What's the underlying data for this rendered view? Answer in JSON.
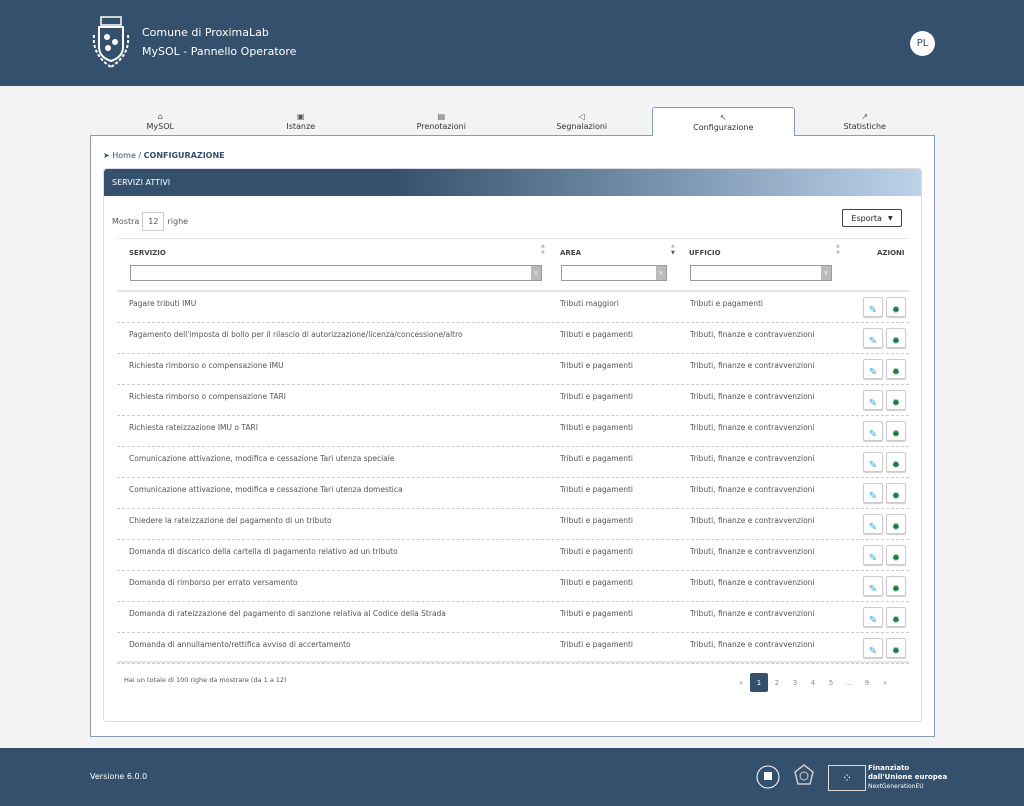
{
  "header": {
    "org": "Comune di ProximaLab",
    "app": "MySOL - Pannello Operatore",
    "avatar": "PL"
  },
  "tabs": [
    {
      "label": "MySOL",
      "icon": "bank-icon"
    },
    {
      "label": "Istanze",
      "icon": "document-icon"
    },
    {
      "label": "Prenotazioni",
      "icon": "calendar-icon"
    },
    {
      "label": "Segnalazioni",
      "icon": "megaphone-icon"
    },
    {
      "label": "Configurazione",
      "icon": "wrench-icon",
      "active": true
    },
    {
      "label": "Statistiche",
      "icon": "chart-icon"
    }
  ],
  "breadcrumb": {
    "home": "Home",
    "sep": "/",
    "current": "CONFIGURAZIONE"
  },
  "card": {
    "title": "SERVIZI ATTIVI",
    "show_prefix": "Mostra",
    "show_value": "12",
    "show_suffix": "righe",
    "export": "Esporta"
  },
  "columns": {
    "servizio": "SERVIZIO",
    "area": "AREA",
    "ufficio": "UFFICIO",
    "azioni": "AZIONI"
  },
  "filters": {
    "x": "x"
  },
  "rows": [
    {
      "servizio": "Pagare tributi IMU",
      "area": "Tributi maggiori",
      "ufficio": "Tributi e pagamenti"
    },
    {
      "servizio": "Pagamento dell'imposta di bollo per il rilascio di autorizzazione/licenza/concessione/altro",
      "area": "Tributi e pagamenti",
      "ufficio": "Tributi, finanze e contravvenzioni"
    },
    {
      "servizio": "Richiesta rimborso o compensazione IMU",
      "area": "Tributi e pagamenti",
      "ufficio": "Tributi, finanze e contravvenzioni"
    },
    {
      "servizio": "Richiesta rimborso o compensazione TARI",
      "area": "Tributi e pagamenti",
      "ufficio": "Tributi, finanze e contravvenzioni"
    },
    {
      "servizio": "Richiesta rateizzazione IMU o TARI",
      "area": "Tributi e pagamenti",
      "ufficio": "Tributi, finanze e contravvenzioni"
    },
    {
      "servizio": "Comunicazione attivazione, modifica e cessazione Tari utenza speciale",
      "area": "Tributi e pagamenti",
      "ufficio": "Tributi, finanze e contravvenzioni"
    },
    {
      "servizio": "Comunicazione attivazione, modifica e cessazione Tari utenza domestica",
      "area": "Tributi e pagamenti",
      "ufficio": "Tributi, finanze e contravvenzioni"
    },
    {
      "servizio": "Chiedere la rateizzazione del pagamento di un tributo",
      "area": "Tributi e pagamenti",
      "ufficio": "Tributi, finanze e contravvenzioni"
    },
    {
      "servizio": "Domanda di discarico della cartella di pagamento relativo ad un tributo",
      "area": "Tributi e pagamenti",
      "ufficio": "Tributi, finanze e contravvenzioni"
    },
    {
      "servizio": "Domanda di rimborso per errato versamento",
      "area": "Tributi e pagamenti",
      "ufficio": "Tributi, finanze e contravvenzioni"
    },
    {
      "servizio": "Domanda di rateizzazione del pagamento di sanzione relativa al Codice della Strada",
      "area": "Tributi e pagamenti",
      "ufficio": "Tributi, finanze e contravvenzioni"
    },
    {
      "servizio": "Domanda di annullamento/rettifica avviso di accertamento",
      "area": "Tributi e pagamenti",
      "ufficio": "Tributi, finanze e contravvenzioni"
    }
  ],
  "total": "Hai un totale di 100 righe da mostrare (da 1 a 12)",
  "pagination": [
    "«",
    "1",
    "2",
    "3",
    "4",
    "5",
    "...",
    "9",
    "»"
  ],
  "pagination_current": "1",
  "footer": {
    "version": "Versione 6.0.0",
    "eu1": "Finanziato",
    "eu2": "dall'Unione europea",
    "eu3": "NextGenerationEU"
  },
  "colors": {
    "primary": "#34506c",
    "edit": "#29a8e0",
    "settings": "#1e7a3c"
  }
}
